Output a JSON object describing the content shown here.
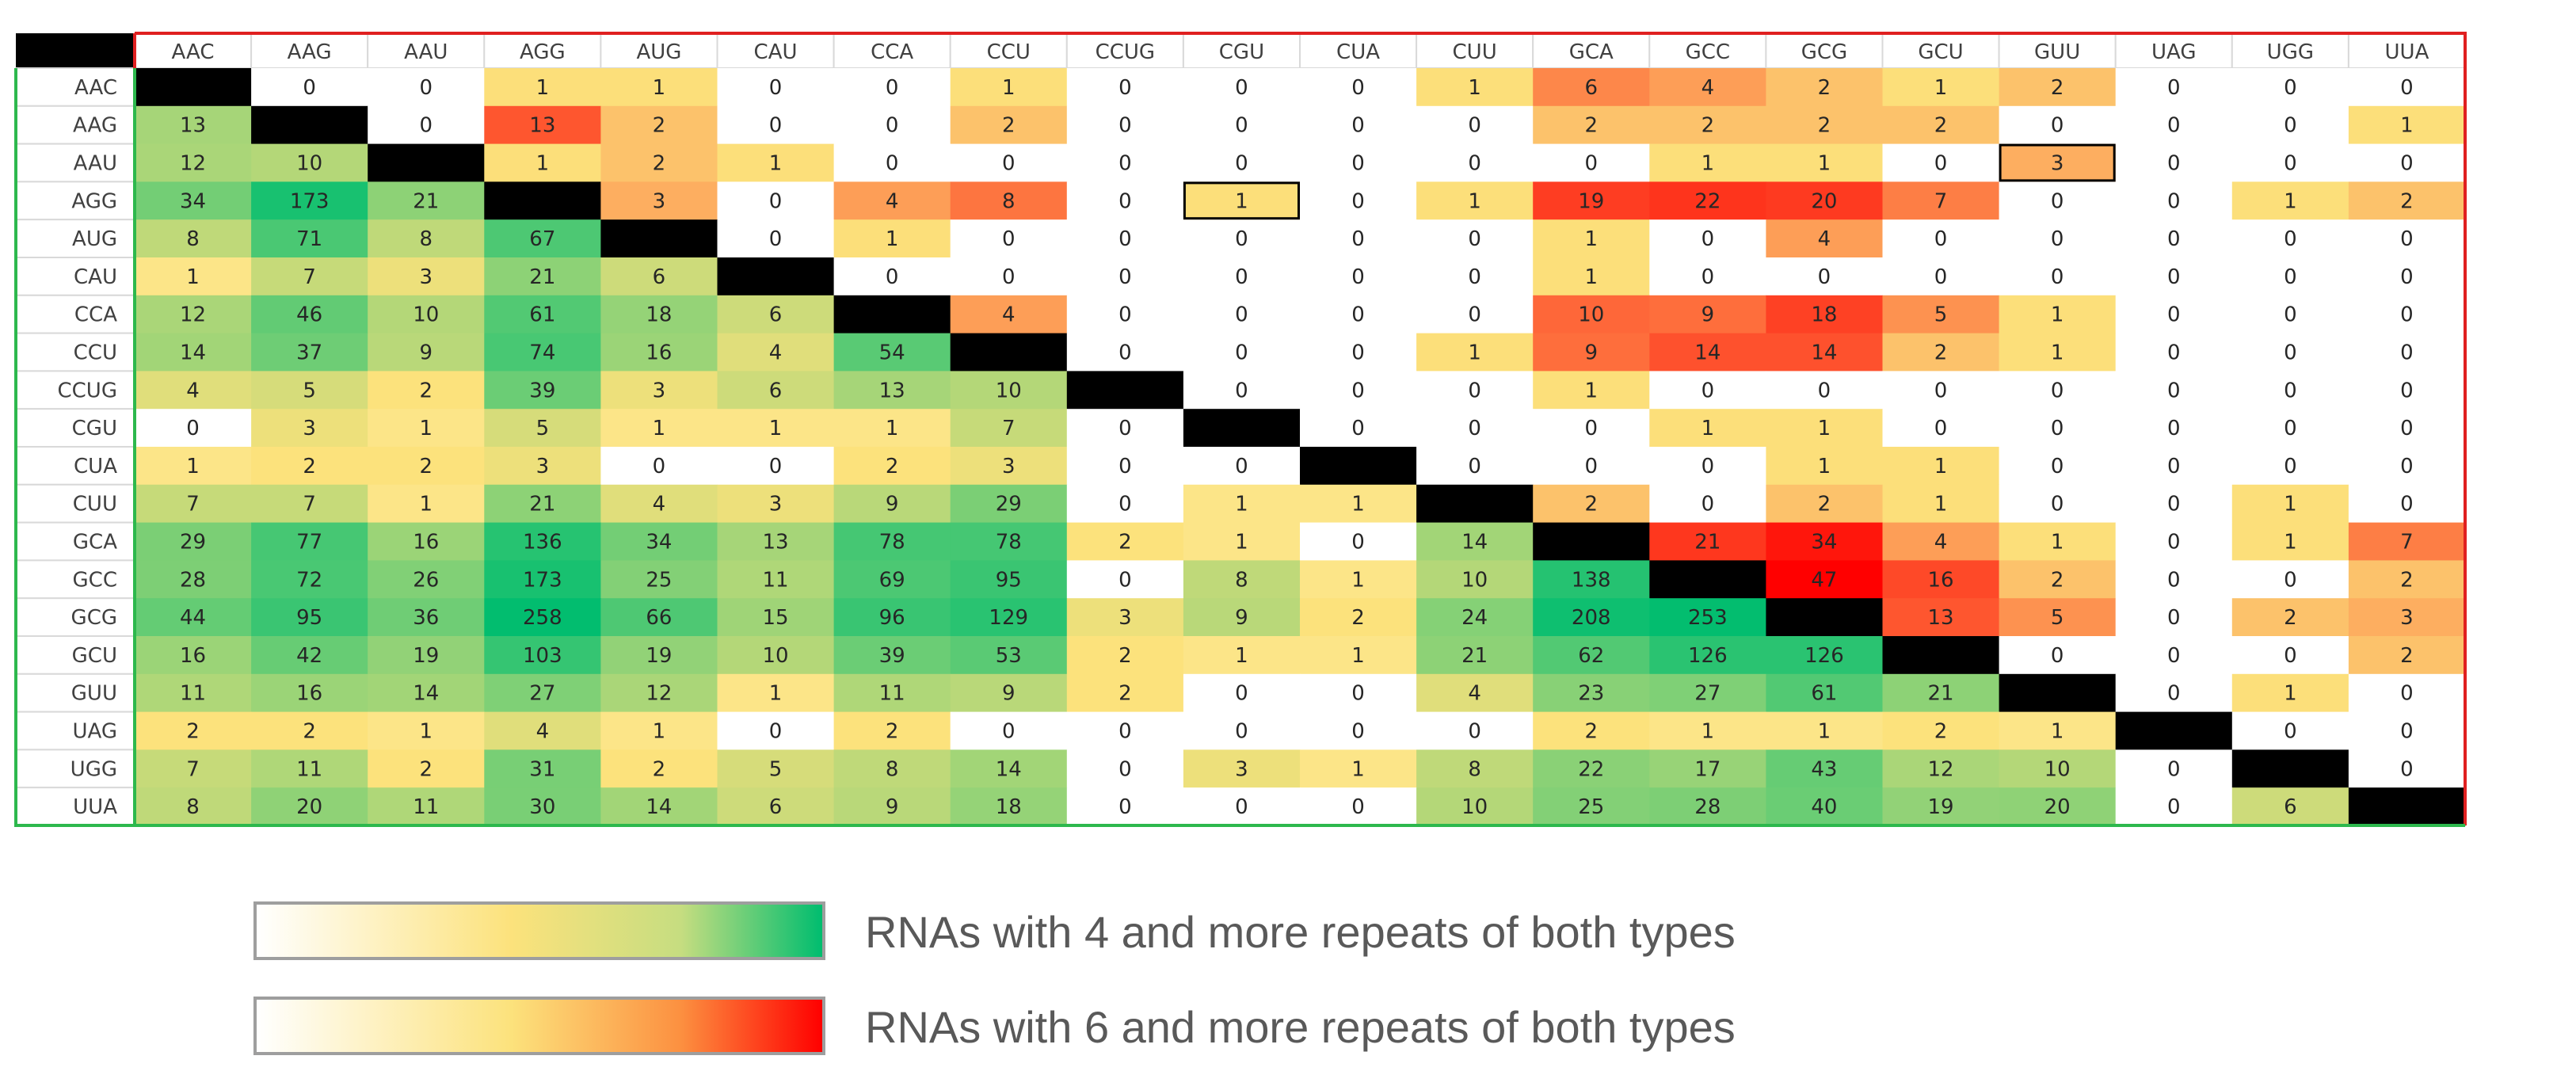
{
  "chart_data": {
    "type": "heatmap",
    "row_labels": [
      "AAC",
      "AAG",
      "AAU",
      "AGG",
      "AUG",
      "CAU",
      "CCA",
      "CCU",
      "CCUG",
      "CGU",
      "CUA",
      "CUU",
      "GCA",
      "GCC",
      "GCG",
      "GCU",
      "GUU",
      "UAG",
      "UGG",
      "UUA"
    ],
    "col_labels": [
      "AAC",
      "AAG",
      "AAU",
      "AGG",
      "AUG",
      "CAU",
      "CCA",
      "CCU",
      "CCUG",
      "CGU",
      "CUA",
      "CUU",
      "GCA",
      "GCC",
      "GCG",
      "GCU",
      "GUU",
      "UAG",
      "UGG",
      "UUA"
    ],
    "values": [
      [
        null,
        0,
        0,
        1,
        1,
        0,
        0,
        1,
        0,
        0,
        0,
        1,
        6,
        4,
        2,
        1,
        2,
        0,
        0,
        0
      ],
      [
        13,
        null,
        0,
        13,
        2,
        0,
        0,
        2,
        0,
        0,
        0,
        0,
        2,
        2,
        2,
        2,
        0,
        0,
        0,
        1
      ],
      [
        12,
        10,
        null,
        1,
        2,
        1,
        0,
        0,
        0,
        0,
        0,
        0,
        0,
        1,
        1,
        0,
        3,
        0,
        0,
        0
      ],
      [
        34,
        173,
        21,
        null,
        3,
        0,
        4,
        8,
        0,
        1,
        0,
        1,
        19,
        22,
        20,
        7,
        0,
        0,
        1,
        2
      ],
      [
        8,
        71,
        8,
        67,
        null,
        0,
        1,
        0,
        0,
        0,
        0,
        0,
        1,
        0,
        4,
        0,
        0,
        0,
        0,
        0
      ],
      [
        1,
        7,
        3,
        21,
        6,
        null,
        0,
        0,
        0,
        0,
        0,
        0,
        1,
        0,
        0,
        0,
        0,
        0,
        0,
        0
      ],
      [
        12,
        46,
        10,
        61,
        18,
        6,
        null,
        4,
        0,
        0,
        0,
        0,
        10,
        9,
        18,
        5,
        1,
        0,
        0,
        0
      ],
      [
        14,
        37,
        9,
        74,
        16,
        4,
        54,
        null,
        0,
        0,
        0,
        1,
        9,
        14,
        14,
        2,
        1,
        0,
        0,
        0
      ],
      [
        4,
        5,
        2,
        39,
        3,
        6,
        13,
        10,
        null,
        0,
        0,
        0,
        1,
        0,
        0,
        0,
        0,
        0,
        0,
        0
      ],
      [
        0,
        3,
        1,
        5,
        1,
        1,
        1,
        7,
        0,
        null,
        0,
        0,
        0,
        1,
        1,
        0,
        0,
        0,
        0,
        0
      ],
      [
        1,
        2,
        2,
        3,
        0,
        0,
        2,
        3,
        0,
        0,
        null,
        0,
        0,
        0,
        1,
        1,
        0,
        0,
        0,
        0
      ],
      [
        7,
        7,
        1,
        21,
        4,
        3,
        9,
        29,
        0,
        1,
        1,
        null,
        2,
        0,
        2,
        1,
        0,
        0,
        1,
        0
      ],
      [
        29,
        77,
        16,
        136,
        34,
        13,
        78,
        78,
        2,
        1,
        0,
        14,
        null,
        21,
        34,
        4,
        1,
        0,
        1,
        7
      ],
      [
        28,
        72,
        26,
        173,
        25,
        11,
        69,
        95,
        0,
        8,
        1,
        10,
        138,
        null,
        47,
        16,
        2,
        0,
        0,
        2
      ],
      [
        44,
        95,
        36,
        258,
        66,
        15,
        96,
        129,
        3,
        9,
        2,
        24,
        208,
        253,
        null,
        13,
        5,
        0,
        2,
        3
      ],
      [
        16,
        42,
        19,
        103,
        19,
        10,
        39,
        53,
        2,
        1,
        1,
        21,
        62,
        126,
        126,
        null,
        0,
        0,
        0,
        2
      ],
      [
        11,
        16,
        14,
        27,
        12,
        1,
        11,
        9,
        2,
        0,
        0,
        4,
        23,
        27,
        61,
        21,
        null,
        0,
        1,
        0
      ],
      [
        2,
        2,
        1,
        4,
        1,
        0,
        2,
        0,
        0,
        0,
        0,
        0,
        2,
        1,
        1,
        2,
        1,
        null,
        0,
        0
      ],
      [
        7,
        11,
        2,
        31,
        2,
        5,
        8,
        14,
        0,
        3,
        1,
        8,
        22,
        17,
        43,
        12,
        10,
        0,
        null,
        0
      ],
      [
        8,
        20,
        11,
        30,
        14,
        6,
        9,
        18,
        0,
        0,
        0,
        10,
        25,
        28,
        40,
        19,
        20,
        0,
        6,
        null
      ]
    ],
    "highlighted_cells": [
      [
        2,
        16
      ],
      [
        3,
        9
      ]
    ],
    "colors": {
      "green_scale": [
        "#ffffff",
        "#fce27c",
        "#00bd6f"
      ],
      "red_scale": [
        "#ffffff",
        "#fce27c",
        "#ff0000"
      ],
      "diagonal": "#000000",
      "lower_border": "#2db84d",
      "upper_border": "#e02020",
      "grid": "#d9d9d9"
    },
    "legend": [
      {
        "label": "RNAs with 4 and more repeats of both types",
        "scale": "green"
      },
      {
        "label": "RNAs with 6 and more repeats of both types",
        "scale": "red"
      }
    ]
  }
}
